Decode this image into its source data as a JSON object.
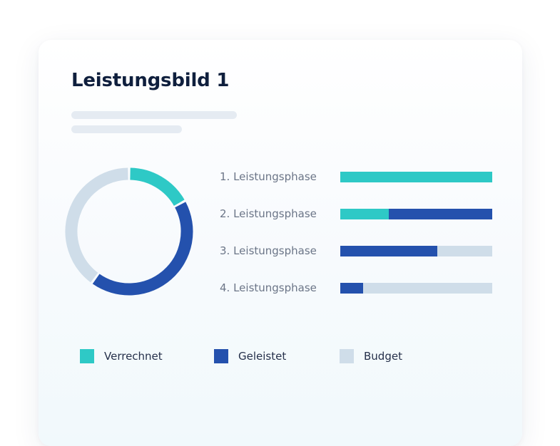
{
  "card": {
    "title": "Leistungsbild 1"
  },
  "colors": {
    "verrechnet": "#2ec9c6",
    "geleistet": "#2451ad",
    "budget": "#cfdde9"
  },
  "chart_data": {
    "donut": {
      "type": "pie",
      "style": "ring",
      "slices": [
        {
          "key": "verrechnet",
          "value": 17
        },
        {
          "key": "geleistet",
          "value": 43
        },
        {
          "key": "budget",
          "value": 40
        }
      ]
    },
    "bars": {
      "type": "bar",
      "orientation": "horizontal",
      "stacked": true,
      "categories": [
        "1. Leistungsphase",
        "2. Leistungsphase",
        "3. Leistungsphase",
        "4. Leistungsphase"
      ],
      "series": [
        {
          "key": "verrechnet",
          "name": "Verrechnet",
          "values": [
            100,
            32,
            0,
            0
          ]
        },
        {
          "key": "geleistet",
          "name": "Geleistet",
          "values": [
            0,
            68,
            64,
            15
          ]
        },
        {
          "key": "budget",
          "name": "Budget",
          "values": [
            0,
            0,
            36,
            85
          ]
        }
      ],
      "unit": "percent"
    },
    "legend": {
      "placement": "bottom",
      "entries": [
        {
          "key": "verrechnet",
          "label": "Verrechnet"
        },
        {
          "key": "geleistet",
          "label": "Geleistet"
        },
        {
          "key": "budget",
          "label": "Budget"
        }
      ]
    }
  }
}
